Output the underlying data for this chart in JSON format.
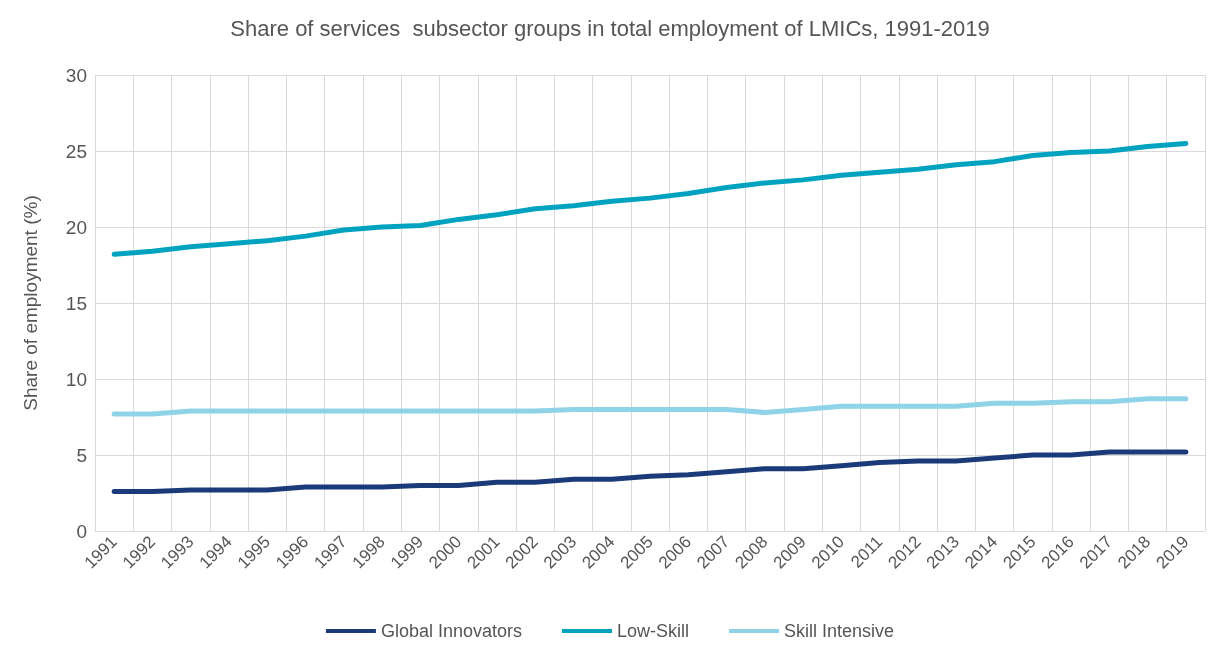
{
  "chart_data": {
    "type": "line",
    "title": "Share of services  subsector groups in total employment of LMICs, 1991-2019",
    "ylabel": "Share of employment (%)",
    "categories": [
      "1991",
      "1992",
      "1993",
      "1994",
      "1995",
      "1996",
      "1997",
      "1998",
      "1999",
      "2000",
      "2001",
      "2002",
      "2003",
      "2004",
      "2005",
      "2006",
      "2007",
      "2008",
      "2009",
      "2010",
      "2011",
      "2012",
      "2013",
      "2014",
      "2015",
      "2016",
      "2017",
      "2018",
      "2019"
    ],
    "series": [
      {
        "name": "Global Innovators",
        "color": "#1b3a7a",
        "values": [
          2.6,
          2.6,
          2.7,
          2.7,
          2.7,
          2.9,
          2.9,
          2.9,
          3.0,
          3.0,
          3.2,
          3.2,
          3.4,
          3.4,
          3.6,
          3.7,
          3.9,
          4.1,
          4.1,
          4.3,
          4.5,
          4.6,
          4.6,
          4.8,
          5.0,
          5.0,
          5.2,
          5.2,
          5.2
        ]
      },
      {
        "name": "Low-Skill",
        "color": "#00a3bf",
        "values": [
          18.2,
          18.4,
          18.7,
          18.9,
          19.1,
          19.4,
          19.8,
          20.0,
          20.1,
          20.5,
          20.8,
          21.2,
          21.4,
          21.7,
          21.9,
          22.2,
          22.6,
          22.9,
          23.1,
          23.4,
          23.6,
          23.8,
          24.1,
          24.3,
          24.7,
          24.9,
          25.0,
          25.3,
          25.5
        ]
      },
      {
        "name": "Skill Intensive",
        "color": "#8fd3e8",
        "values": [
          7.7,
          7.7,
          7.9,
          7.9,
          7.9,
          7.9,
          7.9,
          7.9,
          7.9,
          7.9,
          7.9,
          7.9,
          8.0,
          8.0,
          8.0,
          8.0,
          8.0,
          7.8,
          8.0,
          8.2,
          8.2,
          8.2,
          8.2,
          8.4,
          8.4,
          8.5,
          8.5,
          8.7,
          8.7
        ]
      }
    ],
    "ylim": [
      0,
      30
    ],
    "yticks": [
      0,
      5,
      10,
      15,
      20,
      25,
      30
    ],
    "grid": true,
    "legend": "bottom",
    "marker": "none",
    "line_style": "solid"
  }
}
